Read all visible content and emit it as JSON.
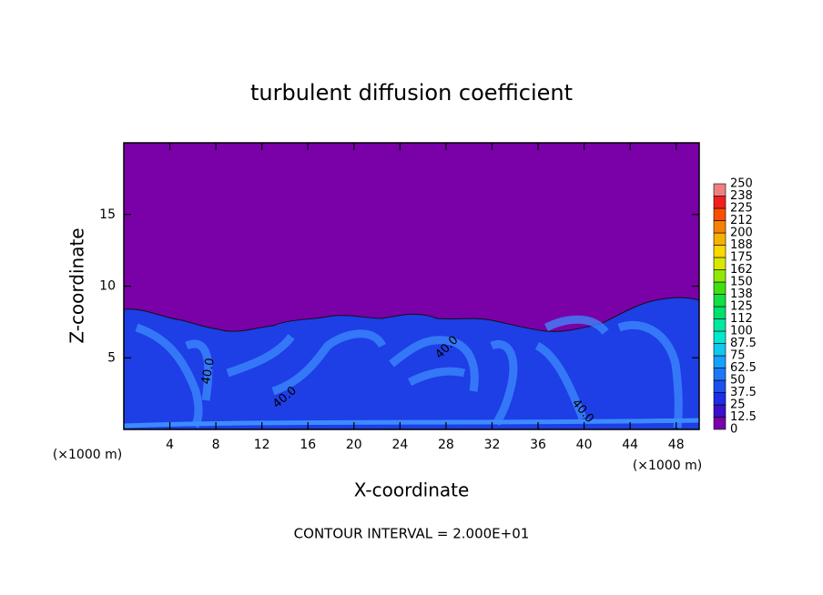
{
  "chart_data": {
    "type": "contour",
    "title": "turbulent diffusion coefficient",
    "x_label": "X-coordinate",
    "y_label": "Z-coordinate",
    "x_unit_label": "(×1000 m)",
    "y_unit_label": "(×1000 m)",
    "footer": "CONTOUR INTERVAL = 2.000E+01",
    "xlim": [
      0,
      50
    ],
    "xticks": [
      4,
      8,
      12,
      16,
      20,
      24,
      28,
      32,
      36,
      40,
      44,
      48
    ],
    "ylim": [
      0,
      20
    ],
    "yticks": [
      5,
      10,
      15
    ],
    "contour_labels": [
      "40.0",
      "40.0",
      "40.0",
      "40.0"
    ],
    "colorbar": {
      "levels": [
        0,
        12.5,
        25,
        37.5,
        50,
        62.5,
        75,
        87.5,
        100,
        {
          "value": 112.5,
          "label": "112"
        },
        125,
        {
          "value": 137.5,
          "label": "138"
        },
        150,
        {
          "value": 162.5,
          "label": "162"
        },
        175,
        {
          "value": 187.5,
          "label": "188"
        },
        200,
        {
          "value": 212.5,
          "label": "212"
        },
        225,
        {
          "value": 237.5,
          "label": "238"
        },
        250
      ],
      "colors": [
        "#7800a8",
        "#3a10c8",
        "#1c2ce8",
        "#1a50f0",
        "#1c78f8",
        "#18a0ff",
        "#10c8f0",
        "#00e8d0",
        "#00e8a0",
        "#00e070",
        "#10e040",
        "#40e010",
        "#90e800",
        "#d8e800",
        "#f8d800",
        "#f8b000",
        "#f88000",
        "#f85000",
        "#f02020",
        "#f08080"
      ]
    }
  }
}
